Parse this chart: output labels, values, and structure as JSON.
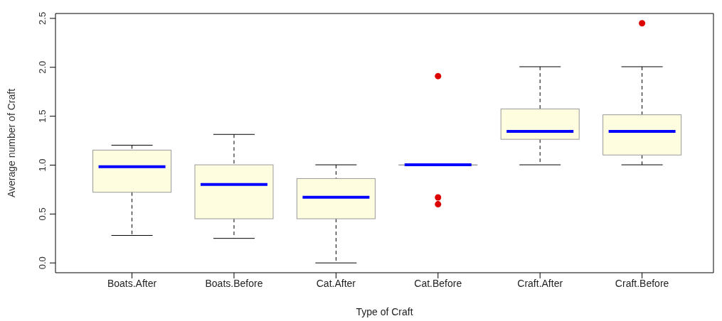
{
  "chart_data": {
    "type": "box",
    "xlabel": "Type of Craft",
    "ylabel": "Average number of Craft",
    "categories": [
      "Boats.After",
      "Boats.Before",
      "Cat.After",
      "Cat.Before",
      "Craft.After",
      "Craft.Before"
    ],
    "boxes": [
      {
        "low": 0.28,
        "q1": 0.72,
        "median": 0.98,
        "q3": 1.15,
        "high": 1.2
      },
      {
        "low": 0.25,
        "q1": 0.45,
        "median": 0.8,
        "q3": 1.0,
        "high": 1.31
      },
      {
        "low": 0.0,
        "q1": 0.45,
        "median": 0.67,
        "q3": 0.86,
        "high": 1.0
      },
      {
        "low": 1.0,
        "q1": 1.0,
        "median": 1.0,
        "q3": 1.0,
        "high": 1.0,
        "outliers": [
          1.91,
          0.67,
          0.6
        ]
      },
      {
        "low": 1.0,
        "q1": 1.26,
        "median": 1.34,
        "q3": 1.57,
        "high": 2.0
      },
      {
        "low": 1.0,
        "q1": 1.1,
        "median": 1.34,
        "q3": 1.51,
        "high": 2.0,
        "outliers": [
          2.45
        ]
      }
    ],
    "color": "#fffde0",
    "ylim": [
      -0.1,
      2.55
    ],
    "yticks": [
      {
        "value": 0,
        "label": "0.0"
      },
      0.5,
      {
        "value": 1,
        "label": "1.0"
      },
      1.5,
      {
        "value": 2,
        "label": "2.0"
      },
      2.5
    ],
    "grid": false,
    "legend": false
  }
}
